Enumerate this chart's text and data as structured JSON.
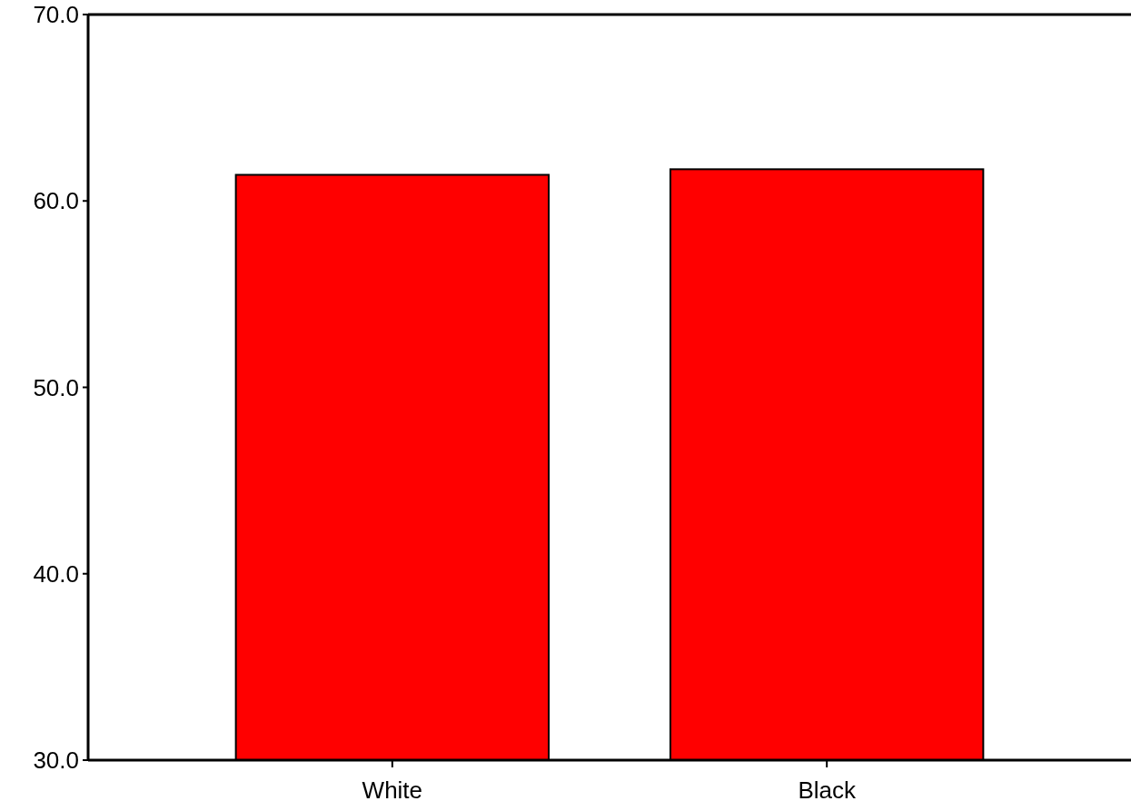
{
  "chart_data": {
    "type": "bar",
    "categories": [
      "White",
      "Black"
    ],
    "values": [
      61.4,
      61.7
    ],
    "color": "#ff0000",
    "ylim": [
      30,
      70
    ],
    "yticks": [
      {
        "value": 30,
        "label": "30.0"
      },
      {
        "value": 40,
        "label": "40.0"
      },
      {
        "value": 50,
        "label": "50.0"
      },
      {
        "value": 60,
        "label": "60.0"
      },
      {
        "value": 70,
        "label": "70.0"
      }
    ]
  }
}
